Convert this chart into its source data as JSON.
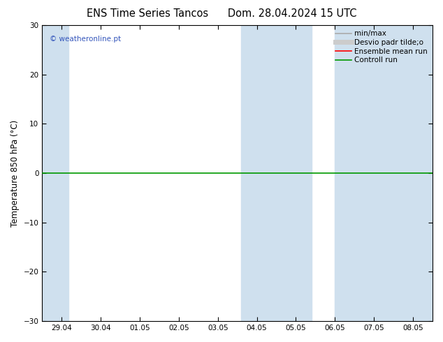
{
  "title_left": "ENS Time Series Tancos",
  "title_right": "Dom. 28.04.2024 15 UTC",
  "ylabel": "Temperature 850 hPa (°C)",
  "ylim": [
    -30,
    30
  ],
  "yticks": [
    -30,
    -20,
    -10,
    0,
    10,
    20,
    30
  ],
  "xtick_labels": [
    "29.04",
    "30.04",
    "01.05",
    "02.05",
    "03.05",
    "04.05",
    "05.05",
    "06.05",
    "07.05",
    "08.05"
  ],
  "xtick_positions": [
    0,
    1,
    2,
    3,
    4,
    5,
    6,
    7,
    8,
    9
  ],
  "xlim": [
    -0.5,
    9.5
  ],
  "hline_y": 0,
  "hline_color": "#009900",
  "hline_lw": 1.2,
  "shade_regions": [
    {
      "xstart": -0.5,
      "xend": 0.18,
      "color": "#cfe0ee",
      "alpha": 1.0
    },
    {
      "xstart": 4.6,
      "xend": 5.5,
      "color": "#cfe0ee",
      "alpha": 1.0
    },
    {
      "xstart": 5.5,
      "xend": 6.4,
      "color": "#cfe0ee",
      "alpha": 1.0
    },
    {
      "xstart": 7.0,
      "xend": 8.0,
      "color": "#cfe0ee",
      "alpha": 1.0
    },
    {
      "xstart": 8.0,
      "xend": 9.5,
      "color": "#cfe0ee",
      "alpha": 1.0
    }
  ],
  "bg_color": "#ffffff",
  "legend_items": [
    {
      "label": "min/max",
      "color": "#aaaaaa",
      "lw": 1.2,
      "ls": "-"
    },
    {
      "label": "Desvio padr tilde;o",
      "color": "#cccccc",
      "lw": 5,
      "ls": "-"
    },
    {
      "label": "Ensemble mean run",
      "color": "#ff0000",
      "lw": 1.2,
      "ls": "-"
    },
    {
      "label": "Controll run",
      "color": "#009900",
      "lw": 1.2,
      "ls": "-"
    }
  ],
  "watermark": "© weatheronline.pt",
  "watermark_color": "#3355bb",
  "title_fontsize": 10.5,
  "tick_fontsize": 7.5,
  "ylabel_fontsize": 8.5,
  "legend_fontsize": 7.5
}
